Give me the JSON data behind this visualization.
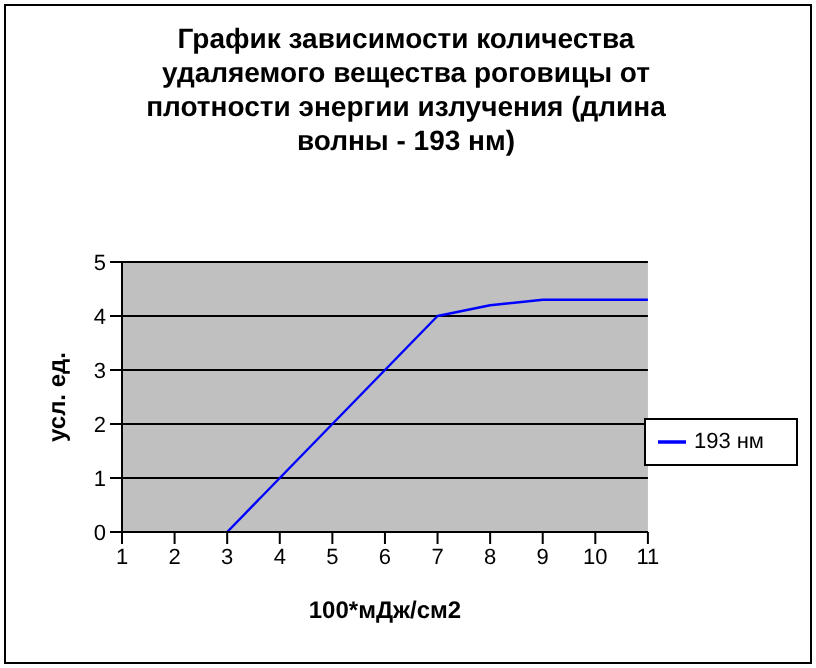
{
  "chart_data": {
    "type": "line",
    "title": "График зависимости количества удаляемого вещества роговицы от плотности энергии излучения (длина волны - 193 нм)",
    "xlabel": "100*мДж/см2",
    "ylabel": "усл. ед.",
    "categories": [
      "1",
      "2",
      "3",
      "4",
      "5",
      "6",
      "7",
      "8",
      "9",
      "10",
      "11"
    ],
    "series": [
      {
        "name": "193 нм",
        "color": "#0000ff",
        "values": [
          null,
          null,
          0,
          1,
          2,
          3,
          4,
          4.2,
          4.3,
          4.3,
          4.3
        ]
      }
    ],
    "ylim": [
      0,
      5
    ],
    "yticks": [
      0,
      1,
      2,
      3,
      4,
      5
    ],
    "grid": "y",
    "legend": "right",
    "marker": "none",
    "line_style": "solid"
  }
}
